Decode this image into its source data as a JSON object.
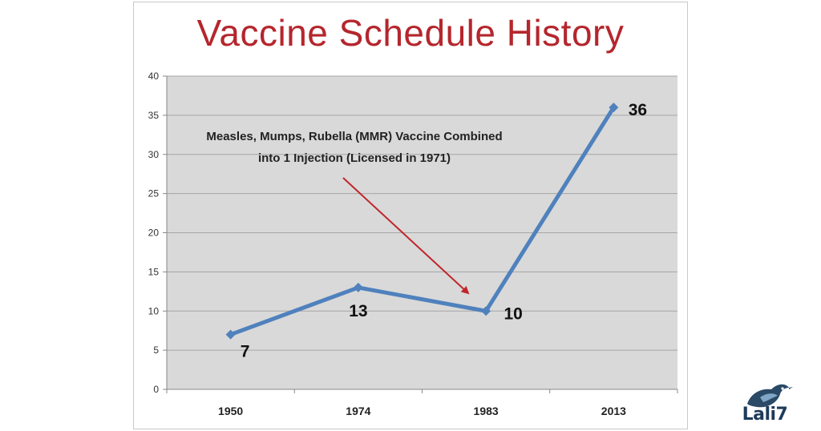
{
  "chart_data": {
    "type": "line",
    "title": "Vaccine Schedule History",
    "xlabel": "",
    "ylabel": "",
    "categories": [
      "1950",
      "1974",
      "1983",
      "2013"
    ],
    "series": [
      {
        "values": [
          7,
          13,
          10,
          36
        ],
        "data_labels": [
          "7",
          "13",
          "10",
          "36"
        ]
      }
    ],
    "ylim": [
      0,
      40
    ],
    "yticks": [
      "0",
      "5",
      "10",
      "15",
      "20",
      "25",
      "30",
      "35",
      "40"
    ],
    "grid": true,
    "legend": "none",
    "annotation": {
      "lines": [
        "Measles, Mumps, Rubella (MMR) Vaccine Combined",
        "into 1 Injection (Licensed in 1971)"
      ],
      "points_to_category": "1983"
    },
    "colors": {
      "line": "#4f81bd",
      "title": "#b5262d",
      "arrow": "#c0262c",
      "plot_background": "#d9d9d9",
      "grid": "#a6a6a6"
    }
  },
  "logo": {
    "name": "lali7-pets-bird-logo",
    "text": "Lali7"
  }
}
